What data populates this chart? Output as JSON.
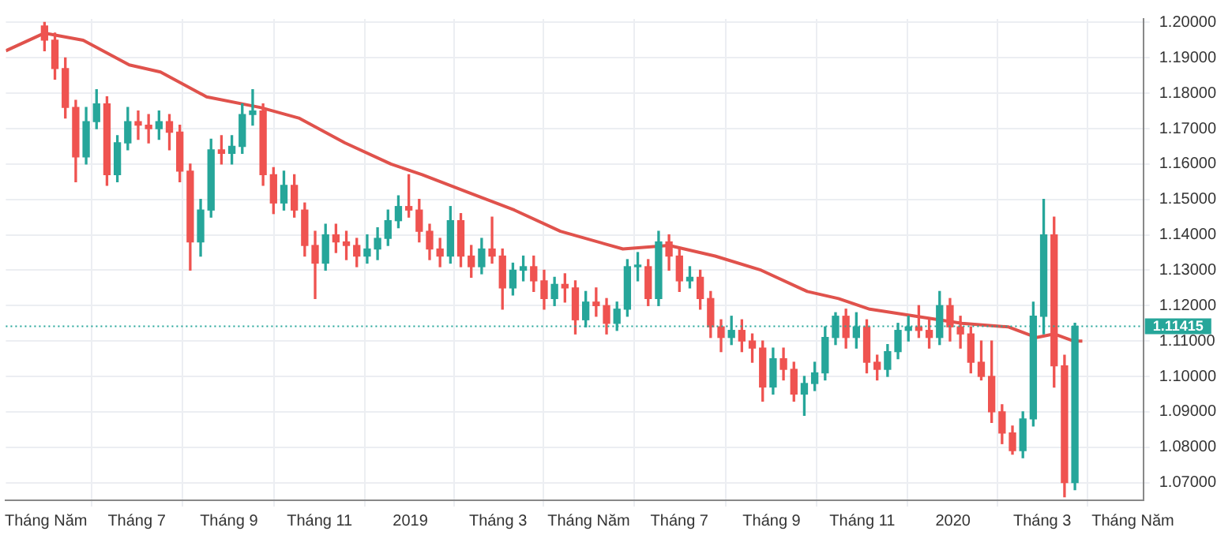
{
  "chart_data": {
    "type": "candlestick",
    "x": [
      "2018-04-30",
      "2018-05-07",
      "2018-05-14",
      "2018-05-21",
      "2018-05-28",
      "2018-06-04",
      "2018-06-11",
      "2018-06-18",
      "2018-06-25",
      "2018-07-02",
      "2018-07-09",
      "2018-07-16",
      "2018-07-23",
      "2018-07-30",
      "2018-08-06",
      "2018-08-13",
      "2018-08-20",
      "2018-08-27",
      "2018-09-03",
      "2018-09-10",
      "2018-09-17",
      "2018-09-24",
      "2018-10-01",
      "2018-10-08",
      "2018-10-15",
      "2018-10-22",
      "2018-10-29",
      "2018-11-05",
      "2018-11-12",
      "2018-11-19",
      "2018-11-26",
      "2018-12-03",
      "2018-12-10",
      "2018-12-17",
      "2018-12-24",
      "2018-12-31",
      "2019-01-07",
      "2019-01-14",
      "2019-01-21",
      "2019-01-28",
      "2019-02-04",
      "2019-02-11",
      "2019-02-18",
      "2019-02-25",
      "2019-03-04",
      "2019-03-11",
      "2019-03-18",
      "2019-03-25",
      "2019-04-01",
      "2019-04-08",
      "2019-04-15",
      "2019-04-22",
      "2019-04-29",
      "2019-05-06",
      "2019-05-13",
      "2019-05-20",
      "2019-05-27",
      "2019-06-03",
      "2019-06-10",
      "2019-06-17",
      "2019-06-24",
      "2019-07-01",
      "2019-07-08",
      "2019-07-15",
      "2019-07-22",
      "2019-07-29",
      "2019-08-05",
      "2019-08-12",
      "2019-08-19",
      "2019-08-26",
      "2019-09-02",
      "2019-09-09",
      "2019-09-16",
      "2019-09-23",
      "2019-09-30",
      "2019-10-07",
      "2019-10-14",
      "2019-10-21",
      "2019-10-28",
      "2019-11-04",
      "2019-11-11",
      "2019-11-18",
      "2019-11-25",
      "2019-12-02",
      "2019-12-09",
      "2019-12-16",
      "2019-12-23",
      "2019-12-30",
      "2020-01-06",
      "2020-01-13",
      "2020-01-20",
      "2020-01-27",
      "2020-02-03",
      "2020-02-10",
      "2020-02-17",
      "2020-02-24",
      "2020-03-02",
      "2020-03-09",
      "2020-03-16",
      "2020-03-23"
    ],
    "ohlc": [
      [
        1.199,
        1.2,
        1.192,
        1.195
      ],
      [
        1.195,
        1.197,
        1.184,
        1.187
      ],
      [
        1.187,
        1.19,
        1.173,
        1.176
      ],
      [
        1.176,
        1.178,
        1.155,
        1.162
      ],
      [
        1.162,
        1.176,
        1.16,
        1.172
      ],
      [
        1.172,
        1.181,
        1.17,
        1.177
      ],
      [
        1.177,
        1.179,
        1.154,
        1.157
      ],
      [
        1.157,
        1.168,
        1.155,
        1.166
      ],
      [
        1.166,
        1.176,
        1.164,
        1.172
      ],
      [
        1.172,
        1.175,
        1.167,
        1.171
      ],
      [
        1.171,
        1.174,
        1.166,
        1.17
      ],
      [
        1.17,
        1.175,
        1.167,
        1.172
      ],
      [
        1.172,
        1.174,
        1.164,
        1.169
      ],
      [
        1.169,
        1.171,
        1.155,
        1.158
      ],
      [
        1.158,
        1.16,
        1.13,
        1.138
      ],
      [
        1.138,
        1.15,
        1.134,
        1.147
      ],
      [
        1.147,
        1.167,
        1.145,
        1.164
      ],
      [
        1.164,
        1.168,
        1.16,
        1.163
      ],
      [
        1.163,
        1.168,
        1.16,
        1.165
      ],
      [
        1.165,
        1.177,
        1.163,
        1.174
      ],
      [
        1.174,
        1.181,
        1.171,
        1.175
      ],
      [
        1.175,
        1.177,
        1.154,
        1.157
      ],
      [
        1.157,
        1.159,
        1.146,
        1.149
      ],
      [
        1.149,
        1.158,
        1.147,
        1.154
      ],
      [
        1.154,
        1.157,
        1.145,
        1.147
      ],
      [
        1.147,
        1.149,
        1.134,
        1.137
      ],
      [
        1.137,
        1.141,
        1.122,
        1.132
      ],
      [
        1.132,
        1.143,
        1.13,
        1.14
      ],
      [
        1.14,
        1.143,
        1.135,
        1.138
      ],
      [
        1.138,
        1.141,
        1.133,
        1.137
      ],
      [
        1.137,
        1.139,
        1.131,
        1.134
      ],
      [
        1.134,
        1.14,
        1.132,
        1.136
      ],
      [
        1.136,
        1.142,
        1.133,
        1.139
      ],
      [
        1.139,
        1.147,
        1.137,
        1.144
      ],
      [
        1.144,
        1.151,
        1.142,
        1.148
      ],
      [
        1.148,
        1.157,
        1.145,
        1.147
      ],
      [
        1.147,
        1.15,
        1.138,
        1.141
      ],
      [
        1.141,
        1.143,
        1.133,
        1.136
      ],
      [
        1.136,
        1.139,
        1.131,
        1.134
      ],
      [
        1.134,
        1.148,
        1.132,
        1.144
      ],
      [
        1.144,
        1.146,
        1.131,
        1.134
      ],
      [
        1.134,
        1.137,
        1.128,
        1.131
      ],
      [
        1.131,
        1.139,
        1.129,
        1.136
      ],
      [
        1.136,
        1.145,
        1.132,
        1.134
      ],
      [
        1.134,
        1.136,
        1.119,
        1.125
      ],
      [
        1.125,
        1.132,
        1.123,
        1.13
      ],
      [
        1.13,
        1.134,
        1.127,
        1.131
      ],
      [
        1.131,
        1.134,
        1.124,
        1.127
      ],
      [
        1.127,
        1.13,
        1.119,
        1.122
      ],
      [
        1.122,
        1.128,
        1.12,
        1.126
      ],
      [
        1.126,
        1.129,
        1.121,
        1.125
      ],
      [
        1.125,
        1.127,
        1.112,
        1.116
      ],
      [
        1.116,
        1.124,
        1.114,
        1.121
      ],
      [
        1.121,
        1.125,
        1.117,
        1.12
      ],
      [
        1.12,
        1.122,
        1.112,
        1.115
      ],
      [
        1.115,
        1.121,
        1.113,
        1.119
      ],
      [
        1.119,
        1.133,
        1.117,
        1.131
      ],
      [
        1.131,
        1.135,
        1.127,
        1.131
      ],
      [
        1.131,
        1.133,
        1.12,
        1.122
      ],
      [
        1.122,
        1.141,
        1.12,
        1.138
      ],
      [
        1.138,
        1.14,
        1.13,
        1.134
      ],
      [
        1.134,
        1.136,
        1.124,
        1.127
      ],
      [
        1.127,
        1.131,
        1.125,
        1.128
      ],
      [
        1.128,
        1.13,
        1.119,
        1.122
      ],
      [
        1.122,
        1.124,
        1.111,
        1.114
      ],
      [
        1.114,
        1.116,
        1.107,
        1.111
      ],
      [
        1.111,
        1.117,
        1.109,
        1.113
      ],
      [
        1.113,
        1.116,
        1.107,
        1.11
      ],
      [
        1.11,
        1.112,
        1.104,
        1.108
      ],
      [
        1.108,
        1.11,
        1.093,
        1.097
      ],
      [
        1.097,
        1.108,
        1.095,
        1.105
      ],
      [
        1.105,
        1.108,
        1.099,
        1.102
      ],
      [
        1.102,
        1.104,
        1.093,
        1.095
      ],
      [
        1.095,
        1.1,
        1.089,
        1.098
      ],
      [
        1.098,
        1.104,
        1.096,
        1.101
      ],
      [
        1.101,
        1.114,
        1.099,
        1.111
      ],
      [
        1.111,
        1.118,
        1.109,
        1.117
      ],
      [
        1.117,
        1.119,
        1.108,
        1.111
      ],
      [
        1.111,
        1.118,
        1.108,
        1.114
      ],
      [
        1.114,
        1.116,
        1.101,
        1.104
      ],
      [
        1.104,
        1.106,
        1.099,
        1.102
      ],
      [
        1.102,
        1.109,
        1.1,
        1.107
      ],
      [
        1.107,
        1.115,
        1.105,
        1.113
      ],
      [
        1.113,
        1.117,
        1.11,
        1.114
      ],
      [
        1.114,
        1.12,
        1.111,
        1.113
      ],
      [
        1.113,
        1.116,
        1.108,
        1.111
      ],
      [
        1.111,
        1.124,
        1.109,
        1.12
      ],
      [
        1.12,
        1.122,
        1.11,
        1.114
      ],
      [
        1.114,
        1.117,
        1.108,
        1.112
      ],
      [
        1.112,
        1.114,
        1.101,
        1.104
      ],
      [
        1.104,
        1.11,
        1.099,
        1.1
      ],
      [
        1.1,
        1.11,
        1.087,
        1.09
      ],
      [
        1.09,
        1.092,
        1.081,
        1.084
      ],
      [
        1.084,
        1.086,
        1.078,
        1.079
      ],
      [
        1.079,
        1.09,
        1.077,
        1.088
      ],
      [
        1.088,
        1.121,
        1.086,
        1.117
      ],
      [
        1.117,
        1.15,
        1.112,
        1.14
      ],
      [
        1.14,
        1.145,
        1.097,
        1.103
      ],
      [
        1.103,
        1.106,
        1.066,
        1.07
      ],
      [
        1.07,
        1.115,
        1.068,
        1.11415
      ]
    ],
    "colors": [
      "#ef5350",
      "#ef5350",
      "#ef5350",
      "#ef5350",
      "#26a69a",
      "#26a69a",
      "#ef5350",
      "#26a69a",
      "#26a69a",
      "#ef5350",
      "#ef5350",
      "#26a69a",
      "#ef5350",
      "#ef5350",
      "#ef5350",
      "#26a69a",
      "#26a69a",
      "#ef5350",
      "#26a69a",
      "#26a69a",
      "#26a69a",
      "#ef5350",
      "#ef5350",
      "#26a69a",
      "#ef5350",
      "#ef5350",
      "#ef5350",
      "#26a69a",
      "#ef5350",
      "#ef5350",
      "#ef5350",
      "#26a69a",
      "#26a69a",
      "#26a69a",
      "#26a69a",
      "#ef5350",
      "#ef5350",
      "#ef5350",
      "#ef5350",
      "#26a69a",
      "#ef5350",
      "#ef5350",
      "#26a69a",
      "#ef5350",
      "#ef5350",
      "#26a69a",
      "#26a69a",
      "#ef5350",
      "#ef5350",
      "#26a69a",
      "#ef5350",
      "#ef5350",
      "#26a69a",
      "#ef5350",
      "#ef5350",
      "#26a69a",
      "#26a69a",
      "#26a69a",
      "#ef5350",
      "#26a69a",
      "#ef5350",
      "#ef5350",
      "#26a69a",
      "#ef5350",
      "#ef5350",
      "#ef5350",
      "#26a69a",
      "#ef5350",
      "#ef5350",
      "#ef5350",
      "#26a69a",
      "#ef5350",
      "#ef5350",
      "#26a69a",
      "#26a69a",
      "#26a69a",
      "#26a69a",
      "#ef5350",
      "#26a69a",
      "#ef5350",
      "#ef5350",
      "#26a69a",
      "#26a69a",
      "#26a69a",
      "#ef5350",
      "#ef5350",
      "#26a69a",
      "#ef5350",
      "#ef5350",
      "#ef5350",
      "#ef5350",
      "#ef5350",
      "#ef5350",
      "#ef5350",
      "#26a69a",
      "#26a69a",
      "#26a69a",
      "#ef5350",
      "#ef5350",
      "#26a69a"
    ],
    "series": [
      {
        "type": "line",
        "color": "#e0524c",
        "x": [
          "2018-04-04",
          "2018-04-30",
          "2018-05-26",
          "2018-06-26",
          "2018-07-17",
          "2018-08-17",
          "2018-09-22",
          "2018-10-18",
          "2018-11-18",
          "2018-12-19",
          "2019-01-09",
          "2019-02-09",
          "2019-03-12",
          "2019-04-12",
          "2019-05-24",
          "2019-06-24",
          "2019-07-25",
          "2019-08-25",
          "2019-09-25",
          "2019-10-16",
          "2019-11-06",
          "2019-12-07",
          "2020-01-07",
          "2020-02-07",
          "2020-02-26",
          "2020-03-09",
          "2020-03-22",
          "2020-03-28"
        ],
        "values": [
          1.192,
          1.197,
          1.195,
          1.188,
          1.186,
          1.179,
          1.176,
          1.173,
          1.166,
          1.16,
          1.157,
          1.152,
          1.147,
          1.141,
          1.136,
          1.137,
          1.134,
          1.13,
          1.124,
          1.122,
          1.119,
          1.117,
          1.115,
          1.114,
          1.111,
          1.112,
          1.11,
          1.11
        ]
      }
    ],
    "xlim": [
      "2018-04-04",
      "2020-05-08"
    ],
    "xticks": [
      {
        "value": "2018-05-01",
        "label": "Tháng Năm"
      },
      {
        "value": "2018-07-01",
        "label": "Tháng 7"
      },
      {
        "value": "2018-09-01",
        "label": "Tháng 9"
      },
      {
        "value": "2018-11-01",
        "label": "Tháng 11"
      },
      {
        "value": "2019-01-01",
        "label": "2019"
      },
      {
        "value": "2019-03-01",
        "label": "Tháng 3"
      },
      {
        "value": "2019-05-01",
        "label": "Tháng Năm"
      },
      {
        "value": "2019-07-01",
        "label": "Tháng 7"
      },
      {
        "value": "2019-09-01",
        "label": "Tháng 9"
      },
      {
        "value": "2019-11-01",
        "label": "Tháng 11"
      },
      {
        "value": "2020-01-01",
        "label": "2020"
      },
      {
        "value": "2020-03-01",
        "label": "Tháng 3"
      },
      {
        "value": "2020-05-01",
        "label": "Tháng Năm"
      }
    ],
    "ylim": [
      1.065,
      1.201
    ],
    "yticks": [
      {
        "value": 1.07,
        "label": "1.07000"
      },
      {
        "value": 1.08,
        "label": "1.08000"
      },
      {
        "value": 1.09,
        "label": "1.09000"
      },
      {
        "value": 1.1,
        "label": "1.10000"
      },
      {
        "value": 1.11,
        "label": "1.11000"
      },
      {
        "value": 1.12,
        "label": "1.12000"
      },
      {
        "value": 1.13,
        "label": "1.13000"
      },
      {
        "value": 1.14,
        "label": "1.14000"
      },
      {
        "value": 1.15,
        "label": "1.15000"
      },
      {
        "value": 1.16,
        "label": "1.16000"
      },
      {
        "value": 1.17,
        "label": "1.17000"
      },
      {
        "value": 1.18,
        "label": "1.18000"
      },
      {
        "value": 1.19,
        "label": "1.19000"
      },
      {
        "value": 1.2,
        "label": "1.20000"
      }
    ],
    "ref_lines": [
      {
        "axis": "y",
        "value": 1.11415,
        "label": "1.11415",
        "color": "#26a69a",
        "line_style": "dotted"
      }
    ],
    "grid": true,
    "legend": false
  }
}
